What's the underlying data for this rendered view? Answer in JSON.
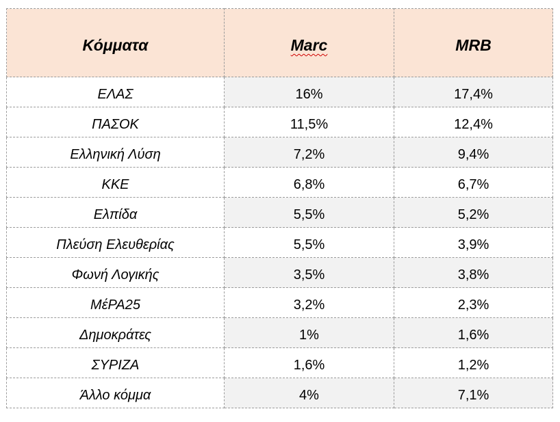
{
  "table": {
    "header": [
      "Κόμματα",
      "Marc",
      "MRB"
    ],
    "rows": [
      [
        "ΕΛΑΣ",
        "16%",
        "17,4%"
      ],
      [
        "ΠΑΣΟΚ",
        "11,5%",
        "12,4%"
      ],
      [
        "Ελληνική Λύση",
        "7,2%",
        "9,4%"
      ],
      [
        "ΚΚΕ",
        "6,8%",
        "6,7%"
      ],
      [
        "Ελπίδα",
        "5,5%",
        "5,2%"
      ],
      [
        "Πλεύση Ελευθερίας",
        "5,5%",
        "3,9%"
      ],
      [
        "Φωνή Λογικής",
        "3,5%",
        "3,8%"
      ],
      [
        "ΜέΡΑ25",
        "3,2%",
        "2,3%"
      ],
      [
        "Δημοκράτες",
        "1%",
        "1,6%"
      ],
      [
        "ΣΥΡΙΖΑ",
        "1,6%",
        "1,2%"
      ],
      [
        "Άλλο κόμμα",
        "4%",
        "7,1%"
      ]
    ]
  }
}
